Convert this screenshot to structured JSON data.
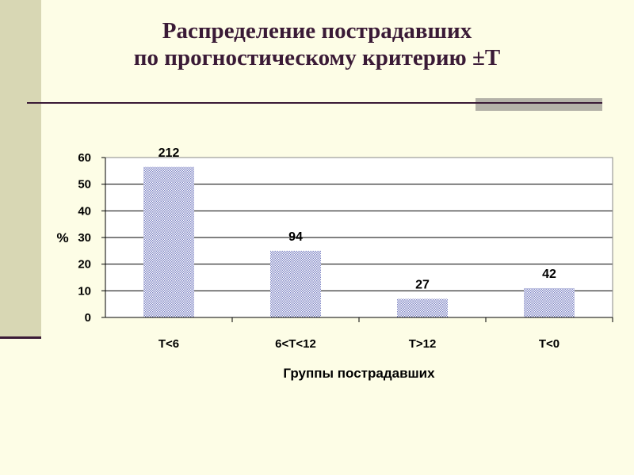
{
  "slide": {
    "title_line1": "Распределение пострадавших",
    "title_line2": "по прогностическому критерию ±Т"
  },
  "colors": {
    "background": "#fdfde6",
    "accent_dark": "#3a1a36",
    "side_bar": "#d8d7b4",
    "bar_fill": "#b8bde6"
  },
  "chart_data": {
    "type": "bar",
    "categories": [
      "Т<6",
      "6<Т<12",
      "Т>12",
      "Т<0"
    ],
    "values": [
      56.5,
      25,
      7,
      11
    ],
    "data_labels": [
      "212",
      "94",
      "27",
      "42"
    ],
    "xlabel": "Группы пострадавших",
    "ylabel": "%",
    "ylim": [
      0,
      60
    ],
    "yticks": [
      0,
      10,
      20,
      30,
      40,
      50,
      60
    ],
    "grid": true,
    "legend": "none"
  }
}
